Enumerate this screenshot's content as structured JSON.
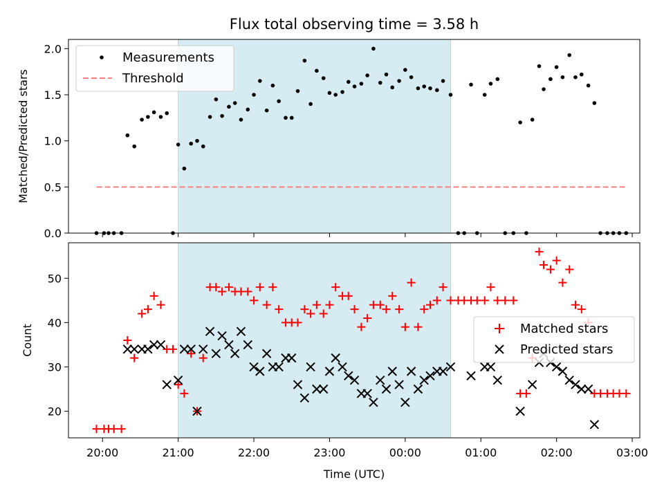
{
  "title": "Flux total observing time = 3.58 h",
  "chart_data": [
    {
      "type": "scatter",
      "ylabel": "Matched/Predicted stars",
      "xlabel": "",
      "x_unit": "hours since 20:00 UTC (values >4 are after midnight)",
      "xlim": [
        -0.45,
        7.1
      ],
      "ylim": [
        0,
        2.1
      ],
      "yticks": [
        0.0,
        0.5,
        1.0,
        1.5,
        2.0
      ],
      "ytick_labels": [
        "0.0",
        "0.5",
        "1.0",
        "1.5",
        "2.0"
      ],
      "shaded_span": [
        1.0,
        4.6
      ],
      "shaded_color": "#add8e6",
      "legend_position": "upper-left",
      "series": [
        {
          "name": "Measurements",
          "kind": "points",
          "color": "#000000",
          "points": [
            [
              -0.08,
              0
            ],
            [
              0.02,
              0
            ],
            [
              0.08,
              0
            ],
            [
              0.15,
              0
            ],
            [
              0.25,
              0
            ],
            [
              0.33,
              1.06
            ],
            [
              0.42,
              0.94
            ],
            [
              0.52,
              1.23
            ],
            [
              0.6,
              1.26
            ],
            [
              0.68,
              1.31
            ],
            [
              0.77,
              1.26
            ],
            [
              0.85,
              1.3
            ],
            [
              0.93,
              0
            ],
            [
              1.0,
              0.96
            ],
            [
              1.08,
              0.7
            ],
            [
              1.17,
              0.97
            ],
            [
              1.25,
              1.0
            ],
            [
              1.33,
              0.94
            ],
            [
              1.42,
              1.26
            ],
            [
              1.5,
              1.45
            ],
            [
              1.58,
              1.27
            ],
            [
              1.67,
              1.37
            ],
            [
              1.75,
              1.41
            ],
            [
              1.83,
              1.23
            ],
            [
              1.92,
              1.34
            ],
            [
              2.0,
              1.5
            ],
            [
              2.08,
              1.65
            ],
            [
              2.17,
              1.33
            ],
            [
              2.25,
              1.6
            ],
            [
              2.33,
              1.43
            ],
            [
              2.42,
              1.25
            ],
            [
              2.5,
              1.25
            ],
            [
              2.58,
              1.54
            ],
            [
              2.67,
              1.87
            ],
            [
              2.75,
              1.4
            ],
            [
              2.83,
              1.76
            ],
            [
              2.92,
              1.68
            ],
            [
              3.0,
              1.52
            ],
            [
              3.08,
              1.5
            ],
            [
              3.17,
              1.53
            ],
            [
              3.25,
              1.64
            ],
            [
              3.33,
              1.59
            ],
            [
              3.42,
              1.62
            ],
            [
              3.5,
              1.71
            ],
            [
              3.58,
              2.0
            ],
            [
              3.67,
              1.63
            ],
            [
              3.75,
              1.72
            ],
            [
              3.83,
              1.58
            ],
            [
              3.92,
              1.65
            ],
            [
              4.0,
              1.77
            ],
            [
              4.08,
              1.69
            ],
            [
              4.17,
              1.57
            ],
            [
              4.25,
              1.59
            ],
            [
              4.33,
              1.57
            ],
            [
              4.42,
              1.55
            ],
            [
              4.5,
              1.65
            ],
            [
              4.6,
              1.5
            ],
            [
              4.7,
              0
            ],
            [
              4.78,
              0
            ],
            [
              4.87,
              1.61
            ],
            [
              4.95,
              0
            ],
            [
              5.05,
              1.5
            ],
            [
              5.13,
              1.62
            ],
            [
              5.22,
              1.67
            ],
            [
              5.32,
              0
            ],
            [
              5.43,
              0
            ],
            [
              5.52,
              1.2
            ],
            [
              5.6,
              0
            ],
            [
              5.68,
              1.23
            ],
            [
              5.77,
              1.81
            ],
            [
              5.83,
              1.56
            ],
            [
              5.92,
              1.67
            ],
            [
              6.0,
              1.8
            ],
            [
              6.08,
              1.69
            ],
            [
              6.17,
              1.93
            ],
            [
              6.25,
              1.69
            ],
            [
              6.33,
              1.72
            ],
            [
              6.42,
              1.6
            ],
            [
              6.5,
              1.41
            ],
            [
              6.58,
              0
            ],
            [
              6.67,
              0
            ],
            [
              6.75,
              0
            ],
            [
              6.83,
              0
            ],
            [
              6.92,
              0
            ]
          ]
        },
        {
          "name": "Threshold",
          "kind": "dashed-line",
          "color": "#ff7f7f",
          "points": [
            [
              -0.08,
              0.5
            ],
            [
              6.92,
              0.5
            ]
          ]
        }
      ]
    },
    {
      "type": "scatter",
      "ylabel": "Count",
      "xlabel": "Time (UTC)",
      "x_unit": "hours since 20:00 UTC (values >4 are after midnight)",
      "xlim": [
        -0.45,
        7.1
      ],
      "ylim": [
        14,
        58
      ],
      "yticks": [
        20,
        30,
        40,
        50
      ],
      "ytick_labels": [
        "20",
        "30",
        "40",
        "50"
      ],
      "xticks": [
        0,
        1,
        2,
        3,
        4,
        5,
        6,
        7
      ],
      "xtick_labels": [
        "20:00",
        "21:00",
        "22:00",
        "23:00",
        "00:00",
        "01:00",
        "02:00",
        "03:00"
      ],
      "shaded_span": [
        1.0,
        4.6
      ],
      "shaded_color": "#add8e6",
      "legend_position": "center-right",
      "series": [
        {
          "name": "Matched stars",
          "kind": "plus",
          "color": "#ff0000",
          "points": [
            [
              -0.08,
              16
            ],
            [
              0.02,
              16
            ],
            [
              0.08,
              16
            ],
            [
              0.15,
              16
            ],
            [
              0.25,
              16
            ],
            [
              0.33,
              36
            ],
            [
              0.42,
              32
            ],
            [
              0.52,
              42
            ],
            [
              0.6,
              43
            ],
            [
              0.68,
              46
            ],
            [
              0.77,
              44
            ],
            [
              0.85,
              34
            ],
            [
              0.93,
              34
            ],
            [
              1.0,
              26
            ],
            [
              1.08,
              24
            ],
            [
              1.17,
              33
            ],
            [
              1.25,
              20
            ],
            [
              1.33,
              32
            ],
            [
              1.42,
              48
            ],
            [
              1.5,
              48
            ],
            [
              1.58,
              47
            ],
            [
              1.67,
              48
            ],
            [
              1.75,
              47
            ],
            [
              1.83,
              47
            ],
            [
              1.92,
              47
            ],
            [
              2.0,
              45
            ],
            [
              2.08,
              48
            ],
            [
              2.17,
              44
            ],
            [
              2.25,
              48
            ],
            [
              2.33,
              43
            ],
            [
              2.42,
              40
            ],
            [
              2.5,
              40
            ],
            [
              2.58,
              40
            ],
            [
              2.67,
              43
            ],
            [
              2.75,
              42
            ],
            [
              2.83,
              44
            ],
            [
              2.92,
              42
            ],
            [
              3.0,
              44
            ],
            [
              3.08,
              48
            ],
            [
              3.17,
              46
            ],
            [
              3.25,
              46
            ],
            [
              3.33,
              43
            ],
            [
              3.42,
              39
            ],
            [
              3.5,
              41
            ],
            [
              3.58,
              44
            ],
            [
              3.67,
              44
            ],
            [
              3.75,
              43
            ],
            [
              3.83,
              46
            ],
            [
              3.92,
              43
            ],
            [
              4.0,
              39
            ],
            [
              4.08,
              49
            ],
            [
              4.17,
              39
            ],
            [
              4.25,
              43
            ],
            [
              4.33,
              44
            ],
            [
              4.42,
              45
            ],
            [
              4.5,
              48
            ],
            [
              4.6,
              45
            ],
            [
              4.7,
              45
            ],
            [
              4.78,
              45
            ],
            [
              4.87,
              45
            ],
            [
              4.95,
              45
            ],
            [
              5.05,
              45
            ],
            [
              5.13,
              48
            ],
            [
              5.22,
              45
            ],
            [
              5.32,
              45
            ],
            [
              5.43,
              45
            ],
            [
              5.52,
              24
            ],
            [
              5.6,
              24
            ],
            [
              5.68,
              32
            ],
            [
              5.77,
              56
            ],
            [
              5.83,
              53
            ],
            [
              5.92,
              52
            ],
            [
              6.0,
              54
            ],
            [
              6.08,
              49
            ],
            [
              6.17,
              52
            ],
            [
              6.25,
              44
            ],
            [
              6.33,
              43
            ],
            [
              6.42,
              40
            ],
            [
              6.5,
              24
            ],
            [
              6.58,
              24
            ],
            [
              6.67,
              24
            ],
            [
              6.75,
              24
            ],
            [
              6.83,
              24
            ],
            [
              6.92,
              24
            ]
          ]
        },
        {
          "name": "Predicted stars",
          "kind": "x",
          "color": "#000000",
          "points": [
            [
              0.33,
              34
            ],
            [
              0.42,
              34
            ],
            [
              0.52,
              34
            ],
            [
              0.6,
              34
            ],
            [
              0.68,
              35
            ],
            [
              0.77,
              35
            ],
            [
              0.85,
              26
            ],
            [
              1.0,
              27
            ],
            [
              1.08,
              34
            ],
            [
              1.17,
              34
            ],
            [
              1.25,
              20
            ],
            [
              1.33,
              34
            ],
            [
              1.42,
              38
            ],
            [
              1.5,
              33
            ],
            [
              1.58,
              37
            ],
            [
              1.67,
              35
            ],
            [
              1.75,
              33
            ],
            [
              1.83,
              38
            ],
            [
              1.92,
              35
            ],
            [
              2.0,
              30
            ],
            [
              2.08,
              29
            ],
            [
              2.17,
              33
            ],
            [
              2.25,
              30
            ],
            [
              2.33,
              30
            ],
            [
              2.42,
              32
            ],
            [
              2.5,
              32
            ],
            [
              2.58,
              26
            ],
            [
              2.67,
              23
            ],
            [
              2.75,
              30
            ],
            [
              2.83,
              25
            ],
            [
              2.92,
              25
            ],
            [
              3.0,
              29
            ],
            [
              3.08,
              32
            ],
            [
              3.17,
              30
            ],
            [
              3.25,
              28
            ],
            [
              3.33,
              27
            ],
            [
              3.42,
              24
            ],
            [
              3.5,
              24
            ],
            [
              3.58,
              22
            ],
            [
              3.67,
              27
            ],
            [
              3.75,
              25
            ],
            [
              3.83,
              29
            ],
            [
              3.92,
              26
            ],
            [
              4.0,
              22
            ],
            [
              4.08,
              29
            ],
            [
              4.17,
              25
            ],
            [
              4.25,
              27
            ],
            [
              4.33,
              28
            ],
            [
              4.42,
              29
            ],
            [
              4.5,
              29
            ],
            [
              4.6,
              30
            ],
            [
              4.87,
              28
            ],
            [
              5.05,
              30
            ],
            [
              5.13,
              30
            ],
            [
              5.22,
              27
            ],
            [
              5.52,
              20
            ],
            [
              5.68,
              26
            ],
            [
              5.77,
              31
            ],
            [
              5.83,
              33
            ],
            [
              5.92,
              31
            ],
            [
              6.0,
              30
            ],
            [
              6.08,
              29
            ],
            [
              6.17,
              27
            ],
            [
              6.25,
              26
            ],
            [
              6.33,
              25
            ],
            [
              6.42,
              25
            ],
            [
              6.5,
              17
            ]
          ]
        }
      ]
    }
  ]
}
